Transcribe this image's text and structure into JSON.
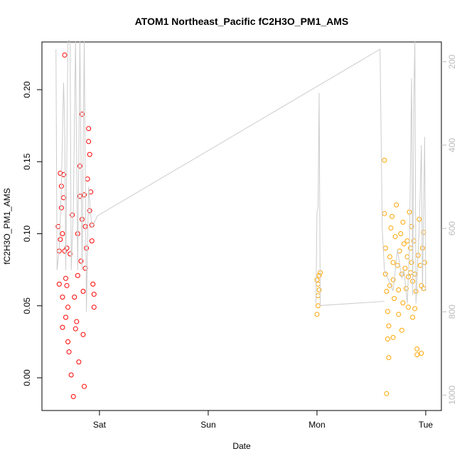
{
  "chart_data": {
    "type": "scatter",
    "title": "ATOM1 Northeast_Pacific fC2H3O_PM1_AMS",
    "x_label": "Date",
    "y_label": "fC2H3O_PM1_AMS",
    "xlim": [
      -0.529,
      3.144
    ],
    "xticks": [
      {
        "value": 0,
        "label": "Sat"
      },
      {
        "value": 1,
        "label": "Sun"
      },
      {
        "value": 2,
        "label": "Mon"
      },
      {
        "value": 3,
        "label": "Tue"
      }
    ],
    "ylim": [
      -0.0227,
      0.2331
    ],
    "yticks": [
      {
        "value": 0,
        "label": "0.00"
      },
      0.05,
      {
        "value": 0.1,
        "label": "0.10"
      },
      0.15,
      {
        "value": 0.2,
        "label": "0.20"
      }
    ],
    "y2lim": [
      1037,
      152.5
    ],
    "y2ticks": [
      200,
      400,
      600,
      800,
      1000
    ],
    "grid": false,
    "series": [
      {
        "color": "#ff0000",
        "marker": "circle",
        "x": [
          -0.38,
          -0.37,
          -0.37,
          -0.36,
          -0.36,
          -0.35,
          -0.35,
          -0.34,
          -0.34,
          -0.33,
          -0.33,
          -0.32,
          -0.32,
          -0.31,
          -0.3,
          -0.3,
          -0.29,
          -0.29,
          -0.27,
          -0.26,
          -0.25,
          -0.24,
          -0.23,
          -0.22,
          -0.21,
          -0.2,
          -0.2,
          -0.19,
          -0.18,
          -0.18,
          -0.17,
          -0.16,
          -0.16,
          -0.15,
          -0.15,
          -0.14,
          -0.14,
          -0.13,
          -0.13,
          -0.12,
          -0.11,
          -0.1,
          -0.1,
          -0.09,
          -0.09,
          -0.08,
          -0.07,
          -0.07,
          -0.06,
          -0.05,
          -0.05,
          -0.34,
          -0.31,
          -0.28
        ],
        "values": [
          0.105,
          0.065,
          0.088,
          0.096,
          0.142,
          0.133,
          0.118,
          0.1,
          0.056,
          0.141,
          0.125,
          0.224,
          0.088,
          0.042,
          0.09,
          0.064,
          0.049,
          0.025,
          0.086,
          0.002,
          0.113,
          -0.013,
          0.056,
          0.034,
          0.039,
          0.071,
          0.1,
          0.011,
          0.147,
          0.126,
          0.081,
          0.183,
          0.11,
          0.06,
          0.03,
          -0.006,
          0.127,
          0.105,
          0.076,
          0.09,
          0.138,
          0.173,
          0.164,
          0.155,
          0.116,
          0.129,
          0.106,
          0.095,
          0.065,
          0.058,
          0.049,
          0.035,
          0.069,
          0.018
        ]
      },
      {
        "color": "#ffa500",
        "marker": "circle",
        "x": [
          2.0,
          2.01,
          2.01,
          2.02,
          2.0,
          2.02,
          2.03,
          2.01,
          2.62,
          2.62,
          2.63,
          2.63,
          2.64,
          2.64,
          2.65,
          2.65,
          2.66,
          2.67,
          2.67,
          2.68,
          2.69,
          2.7,
          2.7,
          2.71,
          2.72,
          2.73,
          2.74,
          2.75,
          2.75,
          2.76,
          2.77,
          2.78,
          2.78,
          2.79,
          2.8,
          2.81,
          2.82,
          2.83,
          2.84,
          2.84,
          2.85,
          2.86,
          2.86,
          2.87,
          2.88,
          2.88,
          2.89,
          2.9,
          2.91,
          2.92,
          2.92,
          2.93,
          2.94,
          2.95,
          2.96,
          2.96,
          2.97,
          2.98,
          2.98,
          2.99,
          2.66,
          2.7,
          2.79,
          2.83,
          2.87,
          2.9
        ],
        "values": [
          0.044,
          0.05,
          0.057,
          0.061,
          0.068,
          0.071,
          0.073,
          0.065,
          0.151,
          0.114,
          0.09,
          0.072,
          0.06,
          -0.011,
          0.046,
          0.027,
          0.036,
          0.064,
          0.084,
          0.104,
          0.112,
          0.08,
          0.068,
          0.055,
          0.098,
          0.12,
          0.078,
          0.061,
          0.044,
          0.088,
          0.1,
          0.072,
          0.033,
          0.108,
          0.093,
          0.076,
          0.062,
          0.084,
          0.07,
          0.049,
          0.115,
          0.09,
          0.073,
          0.08,
          0.067,
          0.042,
          0.095,
          0.072,
          0.06,
          0.02,
          0.016,
          0.085,
          0.11,
          0.078,
          0.064,
          0.017,
          0.09,
          0.101,
          0.062,
          0.08,
          0.014,
          0.028,
          0.052,
          0.095,
          0.105,
          0.048
        ]
      },
      {
        "color": "#cccccc",
        "marker": "line",
        "axis": "y2",
        "x": [
          -0.4,
          -0.39,
          -0.37,
          -0.35,
          -0.33,
          -0.32,
          -0.31,
          -0.29,
          -0.27,
          -0.26,
          -0.24,
          -0.22,
          -0.2,
          -0.18,
          -0.16,
          -0.14,
          -0.12,
          -0.1,
          -0.07,
          -0.02,
          2.58,
          2.6,
          2.62,
          2.7,
          2.74,
          2.78,
          2.8,
          2.83,
          2.85,
          2.87,
          2.88,
          2.89,
          2.9,
          2.91,
          2.94,
          2.96,
          2.97,
          2.99,
          3.0,
          null,
          1.99,
          2.0,
          2.01,
          2.02,
          2.03,
          2.62
        ],
        "values": [
          170,
          700,
          650,
          500,
          250,
          350,
          700,
          150,
          150,
          700,
          550,
          150,
          700,
          150,
          700,
          150,
          800,
          500,
          600,
          570,
          170,
          600,
          700,
          750,
          650,
          720,
          700,
          780,
          650,
          240,
          760,
          300,
          150,
          780,
          600,
          400,
          750,
          380,
          750,
          null,
          780,
          560,
          550,
          275,
          785,
          775
        ]
      }
    ]
  }
}
